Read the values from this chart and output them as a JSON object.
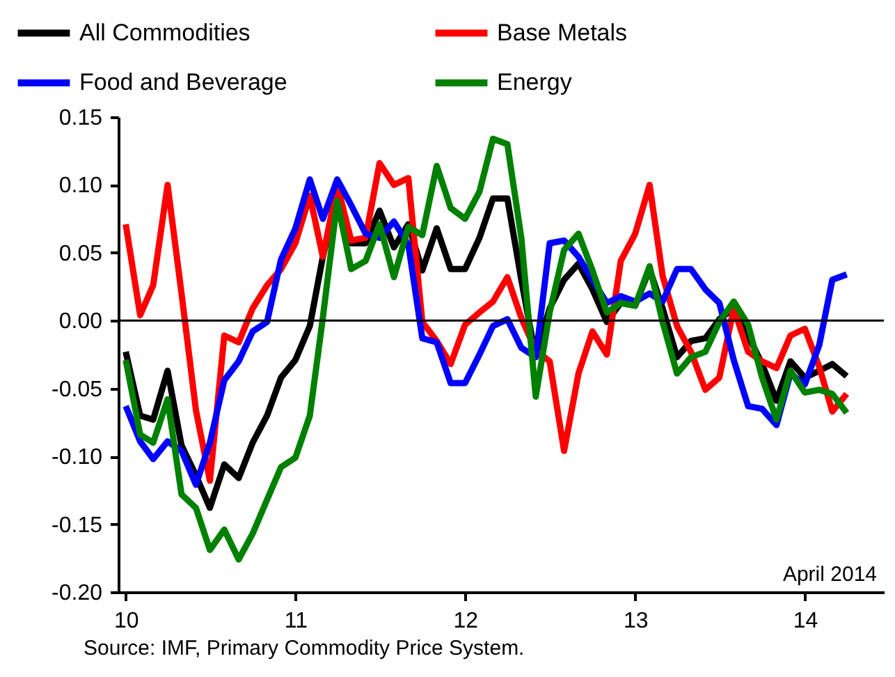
{
  "chart_data": {
    "type": "line",
    "x": [
      "2010-01",
      "2010-02",
      "2010-03",
      "2010-04",
      "2010-05",
      "2010-06",
      "2010-07",
      "2010-08",
      "2010-09",
      "2010-10",
      "2010-11",
      "2010-12",
      "2011-01",
      "2011-02",
      "2011-03",
      "2011-04",
      "2011-05",
      "2011-06",
      "2011-07",
      "2011-08",
      "2011-09",
      "2011-10",
      "2011-11",
      "2011-12",
      "2012-01",
      "2012-02",
      "2012-03",
      "2012-04",
      "2012-05",
      "2012-06",
      "2012-07",
      "2012-08",
      "2012-09",
      "2012-10",
      "2012-11",
      "2012-12",
      "2013-01",
      "2013-02",
      "2013-03",
      "2013-04",
      "2013-05",
      "2013-06",
      "2013-07",
      "2013-08",
      "2013-09",
      "2013-10",
      "2013-11",
      "2013-12",
      "2014-01",
      "2014-02",
      "2014-03",
      "2014-04"
    ],
    "series": [
      {
        "name": "All Commodities",
        "color": "#000000",
        "values": [
          -0.023,
          -0.07,
          -0.073,
          -0.037,
          -0.092,
          -0.114,
          -0.138,
          -0.106,
          -0.116,
          -0.09,
          -0.07,
          -0.042,
          -0.029,
          -0.004,
          0.047,
          0.092,
          0.057,
          0.057,
          0.081,
          0.054,
          0.071,
          0.037,
          0.068,
          0.038,
          0.038,
          0.061,
          0.09,
          0.09,
          0.03,
          -0.027,
          0.009,
          0.03,
          0.042,
          0.023,
          -0.001,
          0.013,
          0.011,
          0.038,
          0.009,
          -0.027,
          -0.015,
          -0.013,
          0.001,
          0.009,
          -0.011,
          -0.032,
          -0.059,
          -0.03,
          -0.042,
          -0.037,
          -0.032,
          -0.041
        ]
      },
      {
        "name": "Base Metals",
        "color": "#ff0000",
        "values": [
          0.071,
          0.004,
          0.026,
          0.1,
          0.02,
          -0.066,
          -0.118,
          -0.011,
          -0.016,
          0.009,
          0.026,
          0.038,
          0.057,
          0.092,
          0.047,
          0.1,
          0.059,
          0.061,
          0.116,
          0.1,
          0.105,
          -0.001,
          -0.015,
          -0.032,
          -0.003,
          0.006,
          0.014,
          0.032,
          0.002,
          -0.022,
          -0.03,
          -0.096,
          -0.039,
          -0.008,
          -0.025,
          0.044,
          0.064,
          0.1,
          0.033,
          -0.004,
          -0.023,
          -0.051,
          -0.042,
          0.009,
          -0.023,
          -0.03,
          -0.035,
          -0.011,
          -0.006,
          -0.034,
          -0.067,
          -0.054
        ]
      },
      {
        "name": "Food and Beverage",
        "color": "#0000ff",
        "values": [
          -0.063,
          -0.089,
          -0.102,
          -0.089,
          -0.096,
          -0.121,
          -0.09,
          -0.044,
          -0.03,
          -0.008,
          -0.001,
          0.045,
          0.068,
          0.104,
          0.075,
          0.104,
          0.085,
          0.064,
          0.061,
          0.073,
          0.056,
          -0.013,
          -0.016,
          -0.046,
          -0.046,
          -0.025,
          -0.004,
          0.001,
          -0.02,
          -0.027,
          0.057,
          0.059,
          0.047,
          0.03,
          0.013,
          0.018,
          0.014,
          0.02,
          0.014,
          0.038,
          0.038,
          0.023,
          0.013,
          -0.029,
          -0.063,
          -0.065,
          -0.077,
          -0.039,
          -0.047,
          -0.018,
          0.03,
          0.034
        ]
      },
      {
        "name": "Energy",
        "color": "#008000",
        "values": [
          -0.029,
          -0.084,
          -0.09,
          -0.058,
          -0.128,
          -0.138,
          -0.169,
          -0.154,
          -0.176,
          -0.157,
          -0.132,
          -0.108,
          -0.101,
          -0.07,
          0.002,
          0.088,
          0.038,
          0.044,
          0.071,
          0.032,
          0.069,
          0.063,
          0.114,
          0.083,
          0.075,
          0.095,
          0.134,
          0.13,
          0.061,
          -0.056,
          0.006,
          0.052,
          0.064,
          0.037,
          0.006,
          0.013,
          0.011,
          0.04,
          -0.001,
          -0.039,
          -0.027,
          -0.023,
          -0.001,
          0.014,
          -0.003,
          -0.042,
          -0.073,
          -0.037,
          -0.053,
          -0.051,
          -0.054,
          -0.068
        ]
      }
    ],
    "xlim": [
      "2009-12-16",
      "2014-06-20"
    ],
    "xticks": [
      {
        "value": "2010",
        "label": "10"
      },
      {
        "value": "2011",
        "label": "11"
      },
      {
        "value": "2012",
        "label": "12"
      },
      {
        "value": "2013",
        "label": "13"
      },
      {
        "value": "2014",
        "label": "14"
      }
    ],
    "ylim": [
      -0.2,
      0.15
    ],
    "yticks": [
      {
        "value": -0.2,
        "label": "-0.20"
      },
      {
        "value": -0.15,
        "label": "-0.15"
      },
      {
        "value": -0.1,
        "label": "-0.10"
      },
      {
        "value": -0.05,
        "label": "-0.05"
      },
      {
        "value": 0,
        "label": "0.00"
      },
      {
        "value": 0.05,
        "label": "0.05"
      },
      {
        "value": 0.1,
        "label": "0.10"
      },
      {
        "value": 0.15,
        "label": "0.15"
      }
    ],
    "ref_lines": [
      {
        "axis": "y",
        "value": 0,
        "color": "#000000"
      }
    ],
    "annotations": [
      "April 2014",
      "Source: IMF, Primary Commodity Price System."
    ],
    "legend": "top",
    "grid": false
  }
}
